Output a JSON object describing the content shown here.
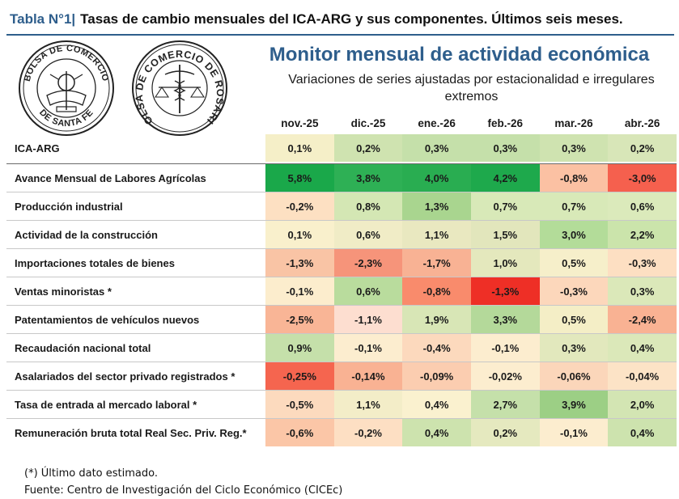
{
  "title": {
    "prefix": "Tabla N°1|",
    "text": "Tasas de cambio mensuales del ICA-ARG y sus componentes. Últimos seis meses."
  },
  "logos": {
    "left": {
      "text_top": "BOLSA DE COMERCIO",
      "text_bottom": "DE SANTA FE",
      "name": "bolsa-santa-fe-seal"
    },
    "right": {
      "text": "BOLSA DE COMERCIO DE ROSARIO",
      "name": "bolsa-rosario-seal"
    }
  },
  "monitor": {
    "title": "Monitor mensual de actividad económica",
    "subtitle": "Variaciones de series ajustadas por estacionalidad e irregulares extremos"
  },
  "table": {
    "columns": [
      "nov.-25",
      "dic.-25",
      "ene.-26",
      "feb.-26",
      "mar.-26",
      "abr.-26"
    ],
    "rows": [
      {
        "name": "ICA-ARG",
        "values": [
          "0,1%",
          "0,2%",
          "0,3%",
          "0,3%",
          "0,3%",
          "0,2%"
        ],
        "colors": [
          "#f5efc8",
          "#cfe3b0",
          "#c5e0aa",
          "#c5e0aa",
          "#cfe3b0",
          "#d8e6b8"
        ]
      },
      {
        "name": "Avance Mensual de Labores Agrícolas",
        "values": [
          "5,8%",
          "3,8%",
          "4,0%",
          "4,2%",
          "-0,8%",
          "-3,0%"
        ],
        "colors": [
          "#1aa84a",
          "#2eb055",
          "#29ad51",
          "#1ea94c",
          "#fbc1a3",
          "#f5604e"
        ]
      },
      {
        "name": "Producción industrial",
        "values": [
          "-0,2%",
          "0,8%",
          "1,3%",
          "0,7%",
          "0,7%",
          "0,6%"
        ],
        "colors": [
          "#fde0c2",
          "#d4e7b4",
          "#a9d58f",
          "#d8e9b8",
          "#d8e9b8",
          "#dbeabb"
        ]
      },
      {
        "name": "Actividad de la construcción",
        "values": [
          "0,1%",
          "0,6%",
          "1,1%",
          "1,5%",
          "3,0%",
          "2,2%"
        ],
        "colors": [
          "#f9f0cc",
          "#f0ecc6",
          "#e9e8c0",
          "#e2e6bc",
          "#b3dc99",
          "#cbe4ab"
        ]
      },
      {
        "name": "Importaciones totales de bienes",
        "values": [
          "-1,3%",
          "-2,3%",
          "-1,7%",
          "1,0%",
          "0,5%",
          "-0,3%"
        ],
        "colors": [
          "#f9c4a5",
          "#f6947a",
          "#f8b294",
          "#e4e8bd",
          "#f6efca",
          "#fddfc2"
        ]
      },
      {
        "name": "Ventas minoristas *",
        "values": [
          "-0,1%",
          "0,6%",
          "-0,8%",
          "-1,3%",
          "-0,3%",
          "0,3%"
        ],
        "colors": [
          "#fcedcd",
          "#b9dc9d",
          "#f98b6c",
          "#ee2f26",
          "#fcd7bb",
          "#dbe8b9"
        ]
      },
      {
        "name": "Patentamientos de vehículos nuevos",
        "values": [
          "-2,5%",
          "-1,1%",
          "1,9%",
          "3,3%",
          "0,5%",
          "-2,4%"
        ],
        "colors": [
          "#f9b596",
          "#fdded0",
          "#d8e6b6",
          "#b4d99a",
          "#f4eec6",
          "#f9b293"
        ]
      },
      {
        "name": "Recaudación nacional total",
        "values": [
          "0,9%",
          "-0,1%",
          "-0,4%",
          "-0,1%",
          "0,3%",
          "0,4%"
        ],
        "colors": [
          "#c5e0aa",
          "#fcedcf",
          "#fcd9bd",
          "#fcedcf",
          "#e2e8bd",
          "#dbe8b9"
        ]
      },
      {
        "name": "Asalariados del sector privado registrados *",
        "values": [
          "-0,25%",
          "-0,14%",
          "-0,09%",
          "-0,02%",
          "-0,06%",
          "-0,04%"
        ],
        "colors": [
          "#f5654f",
          "#f9b293",
          "#fbcdb0",
          "#fcedcf",
          "#fbd6ba",
          "#fce3c6"
        ]
      },
      {
        "name": "Tasa de entrada al mercado laboral *",
        "values": [
          "-0,5%",
          "1,1%",
          "0,4%",
          "2,7%",
          "3,9%",
          "2,0%"
        ],
        "colors": [
          "#fcdabe",
          "#f3edc8",
          "#faf1cf",
          "#c5e0aa",
          "#9ccf85",
          "#d3e5b3"
        ]
      },
      {
        "name": "Remuneración bruta total Real Sec. Priv. Reg.*",
        "values": [
          "-0,6%",
          "-0,2%",
          "0,4%",
          "0,2%",
          "-0,1%",
          "0,4%"
        ],
        "colors": [
          "#fbc6a7",
          "#fddfc3",
          "#cde3ae",
          "#e5e9bf",
          "#fcedcf",
          "#cde3ae"
        ]
      }
    ]
  },
  "footer": {
    "note": "(*) Último dato estimado.",
    "source": "Fuente: Centro de Investigación del Ciclo Económico (CICEc)"
  }
}
